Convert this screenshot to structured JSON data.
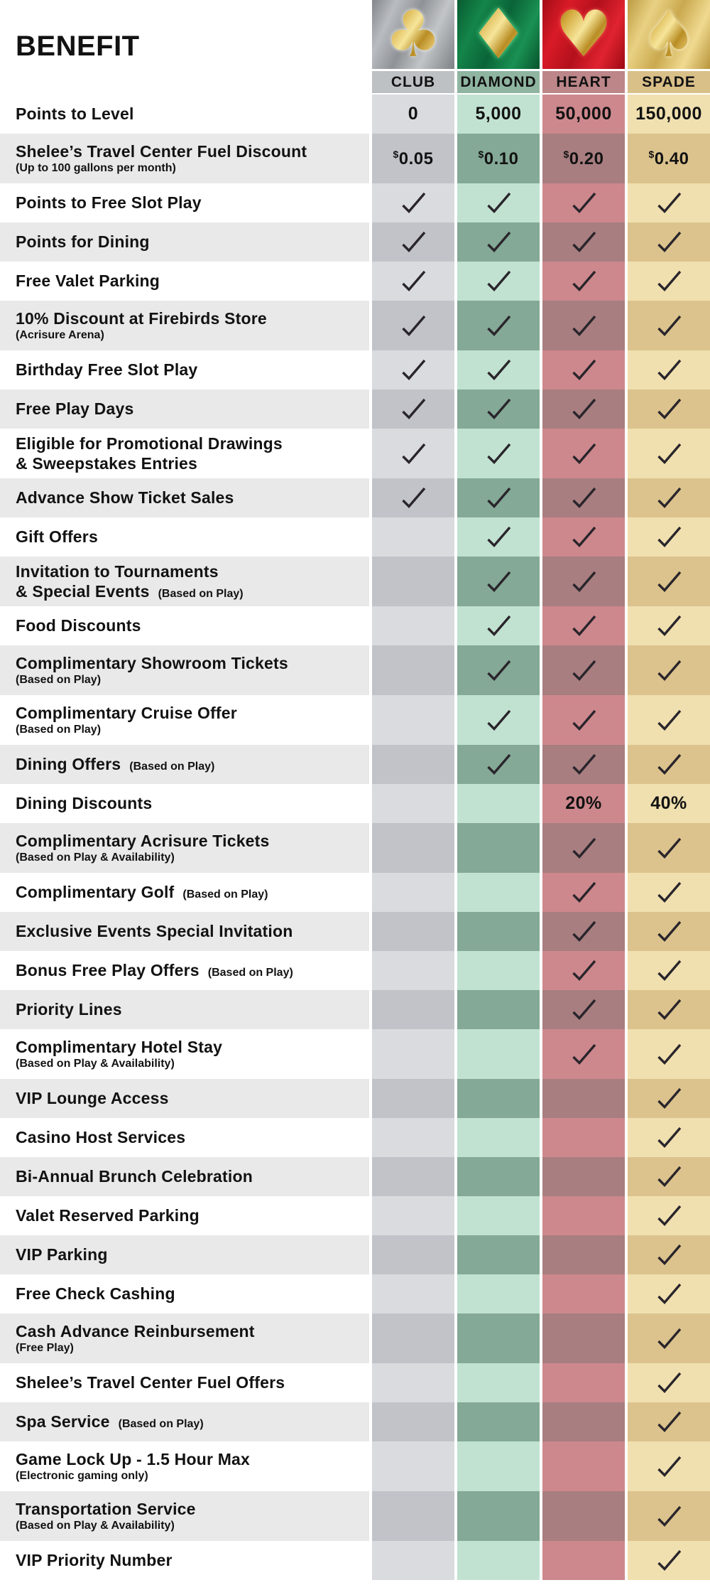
{
  "title": "BENEFIT",
  "colors": {
    "page_bg": "#ffffff",
    "stripe_gray": "#e9e9e9",
    "check": "#29252b",
    "text": "#121212",
    "columns": {
      "club": {
        "header_label_bg": "#bec1c4",
        "light": "#d9dbdf",
        "dark": "#c1c3c8"
      },
      "diamond": {
        "header_label_bg": "#8fb5a1",
        "light": "#c2e2d1",
        "dark": "#84a996"
      },
      "heart": {
        "header_label_bg": "#bd8689",
        "light": "#cd888d",
        "dark": "#a87e80"
      },
      "spade": {
        "header_label_bg": "#d9c089",
        "light": "#f0e0af",
        "dark": "#dcc38d"
      }
    }
  },
  "columns": [
    {
      "id": "club",
      "label": "CLUB",
      "glyph": "♣",
      "icon": "club-suit-icon"
    },
    {
      "id": "diamond",
      "label": "DIAMOND",
      "glyph": "♦",
      "icon": "diamond-suit-icon"
    },
    {
      "id": "heart",
      "label": "HEART",
      "glyph": "♥",
      "icon": "heart-suit-icon"
    },
    {
      "id": "spade",
      "label": "SPADE",
      "glyph": "♠",
      "icon": "spade-suit-icon"
    }
  ],
  "rows": [
    {
      "line1": "Points to Level",
      "cells": [
        "0",
        "5,000",
        "50,000",
        "150,000"
      ]
    },
    {
      "line1": "Shelee’s Travel Center Fuel Discount",
      "line2_note": "(Up to 100 gallons per month)",
      "cells": [
        "$0.05",
        "$0.10",
        "$0.20",
        "$0.40"
      ]
    },
    {
      "line1": "Points to Free Slot Play",
      "cells": [
        "check",
        "check",
        "check",
        "check"
      ]
    },
    {
      "line1": "Points for Dining",
      "cells": [
        "check",
        "check",
        "check",
        "check"
      ]
    },
    {
      "line1": "Free Valet Parking",
      "cells": [
        "check",
        "check",
        "check",
        "check"
      ]
    },
    {
      "line1": "10% Discount at Firebirds Store",
      "line2_note": "(Acrisure Arena)",
      "cells": [
        "check",
        "check",
        "check",
        "check"
      ]
    },
    {
      "line1": "Birthday Free Slot Play",
      "cells": [
        "check",
        "check",
        "check",
        "check"
      ]
    },
    {
      "line1": "Free Play Days",
      "cells": [
        "check",
        "check",
        "check",
        "check"
      ]
    },
    {
      "line1": "Eligible for Promotional Drawings",
      "line2": "& Sweepstakes Entries",
      "cells": [
        "check",
        "check",
        "check",
        "check"
      ]
    },
    {
      "line1": "Advance Show Ticket Sales",
      "cells": [
        "check",
        "check",
        "check",
        "check"
      ]
    },
    {
      "line1": "Gift Offers",
      "cells": [
        "",
        "check",
        "check",
        "check"
      ]
    },
    {
      "line1": "Invitation to Tournaments",
      "line2": "& Special Events",
      "line2_note": "(Based on Play)",
      "cells": [
        "",
        "check",
        "check",
        "check"
      ]
    },
    {
      "line1": "Food Discounts",
      "cells": [
        "",
        "check",
        "check",
        "check"
      ]
    },
    {
      "line1": "Complimentary Showroom Tickets",
      "line2_note": "(Based on Play)",
      "cells": [
        "",
        "check",
        "check",
        "check"
      ]
    },
    {
      "line1": "Complimentary Cruise Offer",
      "line2_note": "(Based on Play)",
      "cells": [
        "",
        "check",
        "check",
        "check"
      ]
    },
    {
      "line1": "Dining Offers",
      "line1_note": "(Based on Play)",
      "cells": [
        "",
        "check",
        "check",
        "check"
      ]
    },
    {
      "line1": "Dining Discounts",
      "cells": [
        "",
        "",
        "20%",
        "40%"
      ]
    },
    {
      "line1": "Complimentary Acrisure Tickets",
      "line2_note": "(Based on Play & Availability)",
      "cells": [
        "",
        "",
        "check",
        "check"
      ]
    },
    {
      "line1": "Complimentary Golf",
      "line1_note": "(Based on Play)",
      "cells": [
        "",
        "",
        "check",
        "check"
      ]
    },
    {
      "line1": "Exclusive Events Special Invitation",
      "cells": [
        "",
        "",
        "check",
        "check"
      ]
    },
    {
      "line1": "Bonus Free Play Offers",
      "line1_note": "(Based on Play)",
      "cells": [
        "",
        "",
        "check",
        "check"
      ]
    },
    {
      "line1": "Priority Lines",
      "cells": [
        "",
        "",
        "check",
        "check"
      ]
    },
    {
      "line1": "Complimentary Hotel Stay",
      "line2_note": "(Based on Play & Availability)",
      "cells": [
        "",
        "",
        "check",
        "check"
      ]
    },
    {
      "line1": "VIP Lounge Access",
      "cells": [
        "",
        "",
        "",
        "check"
      ]
    },
    {
      "line1": "Casino Host Services",
      "cells": [
        "",
        "",
        "",
        "check"
      ]
    },
    {
      "line1": "Bi-Annual Brunch Celebration",
      "cells": [
        "",
        "",
        "",
        "check"
      ]
    },
    {
      "line1": "Valet Reserved Parking",
      "cells": [
        "",
        "",
        "",
        "check"
      ]
    },
    {
      "line1": "VIP Parking",
      "cells": [
        "",
        "",
        "",
        "check"
      ]
    },
    {
      "line1": "Free Check Cashing",
      "cells": [
        "",
        "",
        "",
        "check"
      ]
    },
    {
      "line1": "Cash Advance Reinbursement",
      "line2_note": "(Free Play)",
      "cells": [
        "",
        "",
        "",
        "check"
      ]
    },
    {
      "line1": "Shelee’s Travel Center Fuel Offers",
      "cells": [
        "",
        "",
        "",
        "check"
      ]
    },
    {
      "line1": "Spa Service",
      "line1_note": "(Based on Play)",
      "cells": [
        "",
        "",
        "",
        "check"
      ]
    },
    {
      "line1": "Game Lock Up - 1.5 Hour Max",
      "line2_note": "(Electronic gaming only)",
      "cells": [
        "",
        "",
        "",
        "check"
      ]
    },
    {
      "line1": "Transportation Service",
      "line2_note": "(Based on Play & Availability)",
      "cells": [
        "",
        "",
        "",
        "check"
      ]
    },
    {
      "line1": "VIP Priority Number",
      "cells": [
        "",
        "",
        "",
        "check"
      ]
    }
  ]
}
